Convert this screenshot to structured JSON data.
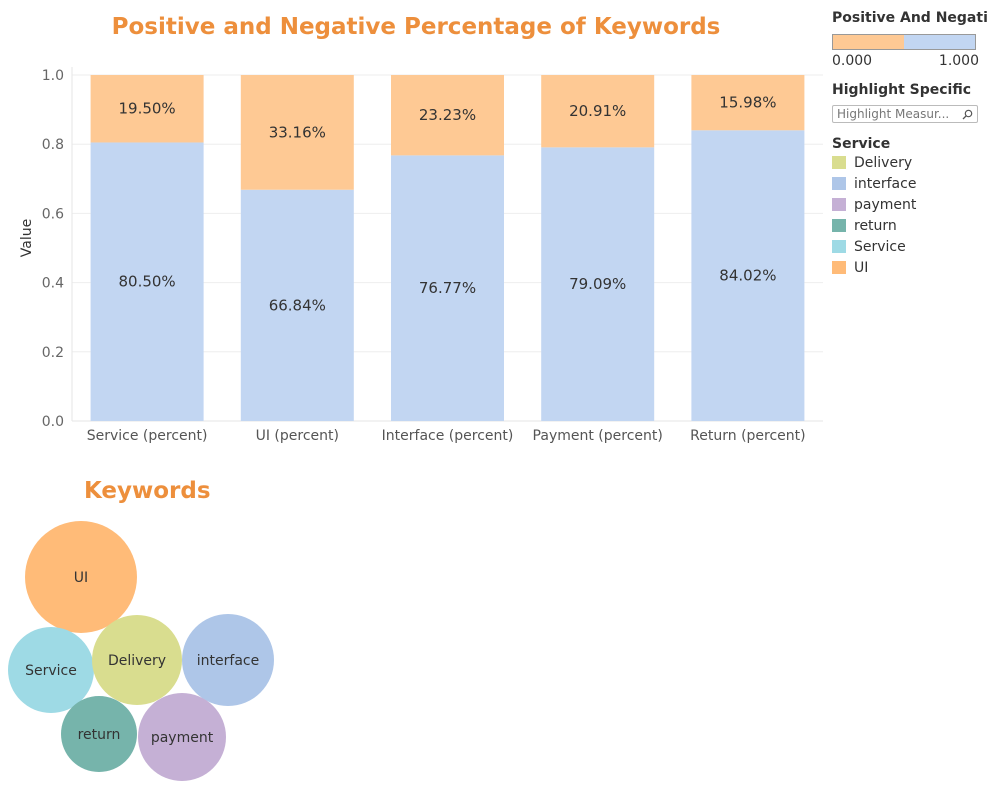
{
  "title": "Positive and Negative Percentage of Keywords",
  "keywords_title": "Keywords",
  "legend": {
    "color_title": "Positive And Negati..",
    "color_min": "0.000",
    "color_max": "1.000",
    "highlight_title": "Highlight Specific",
    "highlight_placeholder": "Highlight Measur...",
    "service_title": "Service",
    "service_items": [
      {
        "label": "Delivery",
        "color": "#d9dd8f"
      },
      {
        "label": "interface",
        "color": "#aec6e8"
      },
      {
        "label": "payment",
        "color": "#c5b0d5"
      },
      {
        "label": "return",
        "color": "#76b4ab"
      },
      {
        "label": "Service",
        "color": "#9edae5"
      },
      {
        "label": "UI",
        "color": "#ffbb78"
      }
    ]
  },
  "chart_data": {
    "type": "bar",
    "stacked": true,
    "categories": [
      "Service (percent)",
      "UI (percent)",
      "Interface (percent)",
      "Payment (percent)",
      "Return (percent)"
    ],
    "series": [
      {
        "values": [
          0.805,
          0.6684,
          0.7677,
          0.7909,
          0.8402
        ],
        "labels": [
          "80.50%",
          "66.84%",
          "76.77%",
          "79.09%",
          "84.02%"
        ],
        "color": "#c2d6f2"
      },
      {
        "values": [
          0.195,
          0.3316,
          0.2323,
          0.2091,
          0.1598
        ],
        "labels": [
          "19.50%",
          "33.16%",
          "23.23%",
          "20.91%",
          "15.98%"
        ],
        "color": "#fec994"
      }
    ],
    "ylabel": "Value",
    "ylim": [
      0,
      1.0
    ],
    "yticks": [
      "0.0",
      "0.2",
      "0.4",
      "0.6",
      "0.8",
      "1.0"
    ],
    "grid": true
  },
  "bubbles": [
    {
      "label": "UI",
      "color": "#ffbb78"
    },
    {
      "label": "Service",
      "color": "#9edae5"
    },
    {
      "label": "Delivery",
      "color": "#d9dd8f"
    },
    {
      "label": "interface",
      "color": "#aec6e8"
    },
    {
      "label": "return",
      "color": "#76b4ab"
    },
    {
      "label": "payment",
      "color": "#c5b0d5"
    }
  ]
}
